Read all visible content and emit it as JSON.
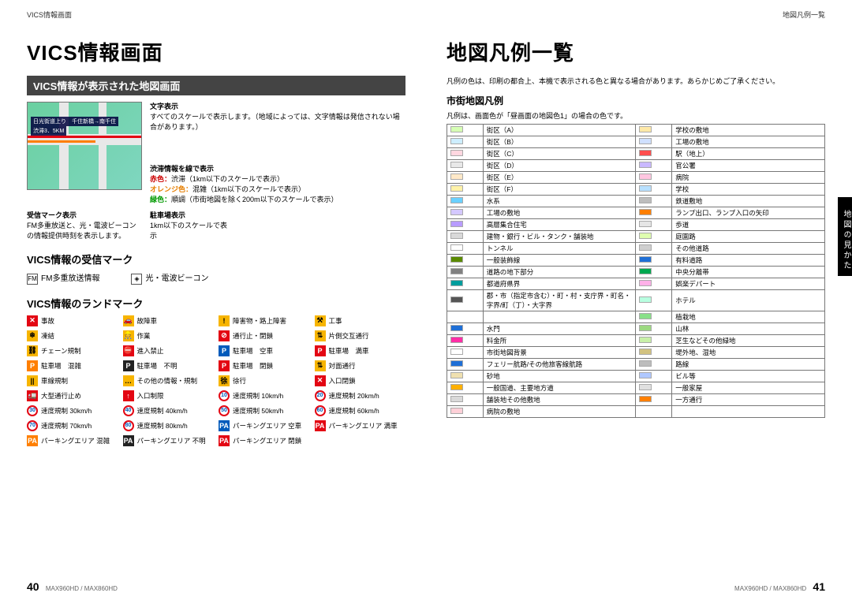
{
  "header": {
    "left": "VICS情報画面",
    "right": "地図凡例一覧"
  },
  "left": {
    "title": "VICS情報画面",
    "section": "VICS情報が表示された地図画面",
    "text_col": {
      "moji_lab": "文字表示",
      "moji_txt": "すべてのスケールで表示します。（地域によっては、文字情報は発信されない場合があります。）",
      "jutai_lab": "渋滞情報を線で表示",
      "jutai_red": "赤色：",
      "jutai_red_t": "渋滞（1km以下のスケールで表示）",
      "jutai_or": "オレンジ色：",
      "jutai_or_t": "混雑（1km以下のスケールで表示）",
      "jutai_gr": "緑色：",
      "jutai_gr_t": "順調（市街地図を除く200m以下のスケールで表示）",
      "rx_lab": "受信マーク表示",
      "rx_txt": "FM多重放送と、光・電波ビーコンの情報提供時刻を表示します。",
      "pk_lab": "駐車場表示",
      "pk_txt": "1km以下のスケールで表示"
    },
    "map_callout1": "日光街道上り　千住新橋→南千住",
    "map_callout2": "渋滞3．5KM",
    "rx_title": "VICS情報の受信マーク",
    "rx_items": [
      {
        "ic": "FM",
        "t": "FM多重放送情報"
      },
      {
        "ic": "◈",
        "t": "光・電波ビーコン"
      }
    ],
    "lm_title": "VICS情報のランドマーク",
    "landmarks": [
      {
        "c": "#e30613",
        "g": "✕",
        "t": "事故"
      },
      {
        "c": "#f7b500",
        "g": "🚗",
        "fg": "#000",
        "t": "故障車"
      },
      {
        "c": "#f7b500",
        "g": "!",
        "fg": "#000",
        "t": "障害物・路上障害"
      },
      {
        "c": "#f7b500",
        "g": "⚒",
        "fg": "#000",
        "t": "工事"
      },
      {
        "c": "#f7b500",
        "g": "❄",
        "fg": "#000",
        "t": "凍結"
      },
      {
        "c": "#f7b500",
        "g": "👷",
        "fg": "#000",
        "t": "作業"
      },
      {
        "c": "#e30613",
        "g": "⊘",
        "t": "通行止・閉鎖"
      },
      {
        "c": "#f7b500",
        "g": "⇅",
        "fg": "#000",
        "t": "片側交互通行"
      },
      {
        "c": "#f7b500",
        "g": "⛓",
        "fg": "#000",
        "t": "チェーン規制"
      },
      {
        "c": "#e30613",
        "g": "⛔",
        "t": "進入禁止"
      },
      {
        "c": "#005bbb",
        "g": "P",
        "t": "駐車場　空車"
      },
      {
        "c": "#e30613",
        "g": "P",
        "t": "駐車場　満車"
      },
      {
        "c": "#ff7f00",
        "g": "P",
        "t": "駐車場　混雑"
      },
      {
        "c": "#222222",
        "g": "P",
        "t": "駐車場　不明"
      },
      {
        "c": "#e30613",
        "g": "P",
        "t": "駐車場　閉鎖"
      },
      {
        "c": "#f7b500",
        "g": "⇅",
        "fg": "#000",
        "t": "対面通行"
      },
      {
        "c": "#f7b500",
        "g": "||",
        "fg": "#000",
        "t": "車線規制"
      },
      {
        "c": "#f7b500",
        "g": "…",
        "fg": "#000",
        "t": "その他の情報・規制"
      },
      {
        "c": "#f7b500",
        "g": "徐",
        "fg": "#000",
        "t": "徐行"
      },
      {
        "c": "#e30613",
        "g": "✕",
        "t": "入口閉鎖"
      },
      {
        "c": "#e30613",
        "g": "🚛",
        "t": "大型通行止め"
      },
      {
        "c": "#e30613",
        "g": "↑",
        "t": "入口制限"
      },
      {
        "c": "#e30613",
        "g": "10",
        "sh": "circ",
        "t": "速度規制 10km/h"
      },
      {
        "c": "#e30613",
        "g": "20",
        "sh": "circ",
        "t": "速度規制 20km/h"
      },
      {
        "c": "#e30613",
        "g": "30",
        "sh": "circ",
        "t": "速度規制 30km/h"
      },
      {
        "c": "#e30613",
        "g": "40",
        "sh": "circ",
        "t": "速度規制 40km/h"
      },
      {
        "c": "#e30613",
        "g": "50",
        "sh": "circ",
        "t": "速度規制 50km/h"
      },
      {
        "c": "#e30613",
        "g": "60",
        "sh": "circ",
        "t": "速度規制 60km/h"
      },
      {
        "c": "#e30613",
        "g": "70",
        "sh": "circ",
        "t": "速度規制 70km/h"
      },
      {
        "c": "#e30613",
        "g": "80",
        "sh": "circ",
        "t": "速度規制 80km/h"
      },
      {
        "c": "#005bbb",
        "g": "PA",
        "t": "パーキングエリア 空車"
      },
      {
        "c": "#e30613",
        "g": "PA",
        "t": "パーキングエリア 満車"
      },
      {
        "c": "#ff7f00",
        "g": "PA",
        "t": "パーキングエリア 混雑"
      },
      {
        "c": "#222222",
        "g": "PA",
        "t": "パーキングエリア 不明"
      },
      {
        "c": "#e30613",
        "g": "PA",
        "t": "パーキングエリア 閉鎖"
      }
    ],
    "footer_page": "40",
    "footer_model": "MAX960HD / MAX860HD"
  },
  "right": {
    "title": "地図凡例一覧",
    "note": "凡例の色は、印刷の都合上、本機で表示される色と異なる場合があります。あらかじめご了承ください。",
    "leg_h": "市街地図凡例",
    "leg_sub": "凡例は、画面色が「昼画面の地図色1」の場合の色です。",
    "rows": [
      [
        "街区（A）",
        "#d6ffb4",
        "学校の敷地",
        "#ffe9a8"
      ],
      [
        "街区（B）",
        "#cdeeff",
        "工場の敷地",
        "#cfe0ff"
      ],
      [
        "街区（C）",
        "#ffd7e0",
        "駅（地上）",
        "#ff4d4d"
      ],
      [
        "街区（D）",
        "#e8e8e8",
        "官公署",
        "#c9b8ff"
      ],
      [
        "街区（E）",
        "#ffe9c8",
        "病院",
        "#ffc6e0"
      ],
      [
        "街区（F）",
        "#fff2a8",
        "学校",
        "#b8e0ff"
      ],
      [
        "水系",
        "#6ad0ff",
        "鉄道敷地",
        "#bdbdbd"
      ],
      [
        "工場の敷地",
        "#d4c8ff",
        "ランプ出口、ランプ入口の矢印",
        "#ff7f00"
      ],
      [
        "高層集合住宅",
        "#b89cff",
        "歩道",
        "#e6e6e6"
      ],
      [
        "建物・銀行・ビル・タンク・舗装地",
        "#d9d9d9",
        "庭園路",
        "#dfffb0"
      ],
      [
        "トンネル",
        "#ffffff",
        "その他道路",
        "#cfcfcf"
      ],
      [
        "一般装飾線",
        "#5a8a00",
        "有料道路",
        "#1f6fd6"
      ],
      [
        "道路の地下部分",
        "#808080",
        "中央分離帯",
        "#00a84f"
      ],
      [
        "都道府県界",
        "#009d9d",
        "娯楽デパート",
        "#ffb0e8"
      ],
      [
        "郡・市（指定市含む）・町・村・支庁界・町名・字界/町（丁）・大字界",
        "#555555",
        "ホテル",
        "#b8ffe0"
      ],
      [
        "",
        "",
        "植栽地",
        "#89e089"
      ],
      [
        "水門",
        "#1f6fd6",
        "山林",
        "#9cd980"
      ],
      [
        "料金所",
        "#ff2ea6",
        "芝生などその他緑地",
        "#c8f0a8"
      ],
      [
        "市街地図背景",
        "#ffffff",
        "堤外地、湿地",
        "#d2c280"
      ],
      [
        "フェリー航路/その他旅客線航路",
        "#1f6fd6",
        "路線",
        "#bdbdbd"
      ],
      [
        "砂地",
        "#efe0b0",
        "ビル等",
        "#b0c8ff"
      ],
      [
        "一般国道、主要地方道",
        "#ffb000",
        "一般家屋",
        "#e0e0e0"
      ],
      [
        "舗装地その他敷地",
        "#d9d9d9",
        "一方通行",
        "#ff7f00"
      ],
      [
        "病院の敷地",
        "#ffd0d8",
        "",
        ""
      ]
    ],
    "side_tab": "地図の見かた",
    "footer_model": "MAX960HD / MAX860HD",
    "footer_page": "41"
  }
}
